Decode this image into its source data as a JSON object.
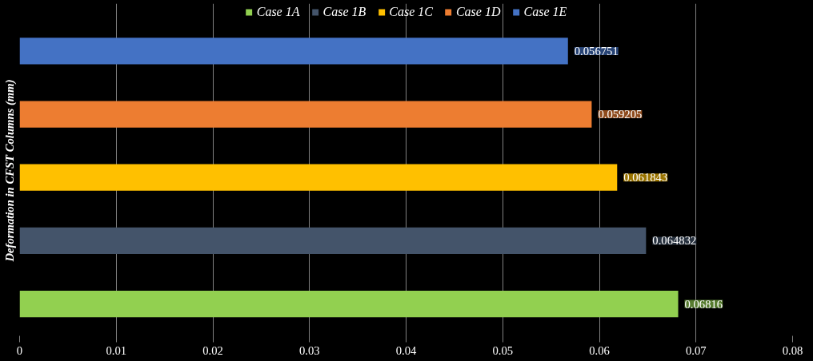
{
  "chart_data": {
    "type": "bar",
    "orientation": "horizontal",
    "stacked": true,
    "ylabel": "Deformation in CFST Columns (mm)",
    "categories": [
      null,
      null,
      null,
      null,
      null
    ],
    "series": [
      {
        "name": "Case 1A",
        "color": "#92d050",
        "values": [
          null,
          null,
          null,
          null,
          0.06816
        ]
      },
      {
        "name": "Case 1B",
        "color": "#44546a",
        "values": [
          null,
          null,
          null,
          0.064832,
          null
        ]
      },
      {
        "name": "Case 1C",
        "color": "#ffc000",
        "values": [
          null,
          null,
          0.061843,
          null,
          null
        ]
      },
      {
        "name": "Case 1D",
        "color": "#ed7d31",
        "values": [
          null,
          0.059205,
          null,
          null,
          null
        ]
      },
      {
        "name": "Case 1E",
        "color": "#4472c4",
        "values": [
          0.056751,
          null,
          null,
          null,
          null
        ]
      }
    ],
    "xlim": [
      0,
      0.08
    ],
    "xticks": [
      0,
      0.01,
      0.02,
      0.03,
      0.04,
      0.05,
      0.06,
      0.07,
      0.08
    ],
    "grid": "x",
    "legend": "top",
    "data_labels": true
  }
}
